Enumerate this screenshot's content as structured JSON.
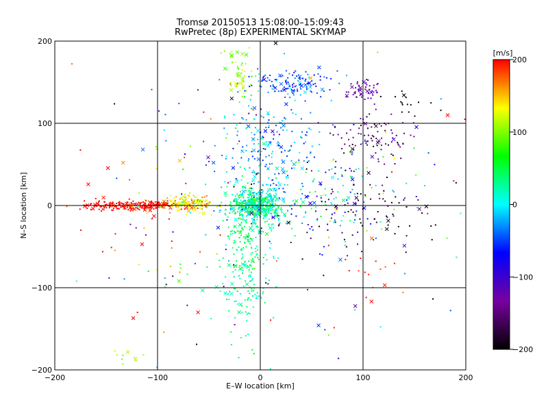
{
  "chart_data": {
    "type": "scatter",
    "title": "Tromsø 20150513 15:08:00–15:09:43",
    "subtitle": "RwPretec (8p) EXPERIMENTAL SKYMAP",
    "xlabel": "E–W location [km]",
    "ylabel": "N–S location [km]",
    "xlim": [
      -200,
      200
    ],
    "ylim": [
      -200,
      200
    ],
    "xticks": [
      -200,
      -100,
      0,
      100,
      200
    ],
    "yticks": [
      -200,
      -100,
      0,
      100,
      200
    ],
    "grid": true,
    "colorbar": {
      "title": "[m/s]",
      "range": [
        -200,
        200
      ],
      "ticks": [
        200,
        100,
        0,
        -100,
        -200
      ],
      "colormap": [
        "#000000",
        "#7800a0",
        "#0000ff",
        "#00ffff",
        "#00ff00",
        "#ffff00",
        "#ff0000"
      ]
    },
    "markers": [
      "dot",
      "cross"
    ],
    "clusters": [
      {
        "x": -125,
        "y": 0,
        "sx": 25,
        "sy": 3,
        "v": 200,
        "vs": 10,
        "n": 220
      },
      {
        "x": -70,
        "y": 3,
        "sx": 12,
        "sy": 5,
        "v": 140,
        "vs": 25,
        "n": 150
      },
      {
        "x": -3,
        "y": 0,
        "sx": 12,
        "sy": 10,
        "v": 20,
        "vs": 30,
        "n": 450
      },
      {
        "x": -15,
        "y": -50,
        "sx": 12,
        "sy": 50,
        "v": 30,
        "vs": 20,
        "n": 280
      },
      {
        "x": 5,
        "y": 60,
        "sx": 25,
        "sy": 40,
        "v": -30,
        "vs": 25,
        "n": 220
      },
      {
        "x": 35,
        "y": 150,
        "sx": 20,
        "sy": 8,
        "v": -50,
        "vs": 20,
        "n": 120
      },
      {
        "x": -20,
        "y": 165,
        "sx": 8,
        "sy": 20,
        "v": 110,
        "vs": 20,
        "n": 60
      },
      {
        "x": 100,
        "y": 140,
        "sx": 8,
        "sy": 7,
        "v": -120,
        "vs": 10,
        "n": 50
      },
      {
        "x": 110,
        "y": 85,
        "sx": 20,
        "sy": 15,
        "v": -150,
        "vs": 30,
        "n": 90
      },
      {
        "x": 60,
        "y": 20,
        "sx": 40,
        "sy": 40,
        "v": -20,
        "vs": 80,
        "n": 180
      },
      {
        "x": 100,
        "y": -10,
        "sx": 30,
        "sy": 20,
        "v": -180,
        "vs": 20,
        "n": 60
      },
      {
        "x": 0,
        "y": 0,
        "sx": 110,
        "sy": 110,
        "v": 0,
        "vs": 140,
        "n": 170
      },
      {
        "x": -130,
        "y": -185,
        "sx": 8,
        "sy": 5,
        "v": 110,
        "vs": 10,
        "n": 10
      },
      {
        "x": 110,
        "y": -75,
        "sx": 15,
        "sy": 20,
        "v": 190,
        "vs": 10,
        "n": 15
      },
      {
        "x": 140,
        "y": 125,
        "sx": 10,
        "sy": 8,
        "v": -200,
        "vs": 5,
        "n": 15
      },
      {
        "x": -120,
        "y": -10,
        "sx": 30,
        "sy": 40,
        "v": 180,
        "vs": 40,
        "n": 30
      }
    ]
  }
}
